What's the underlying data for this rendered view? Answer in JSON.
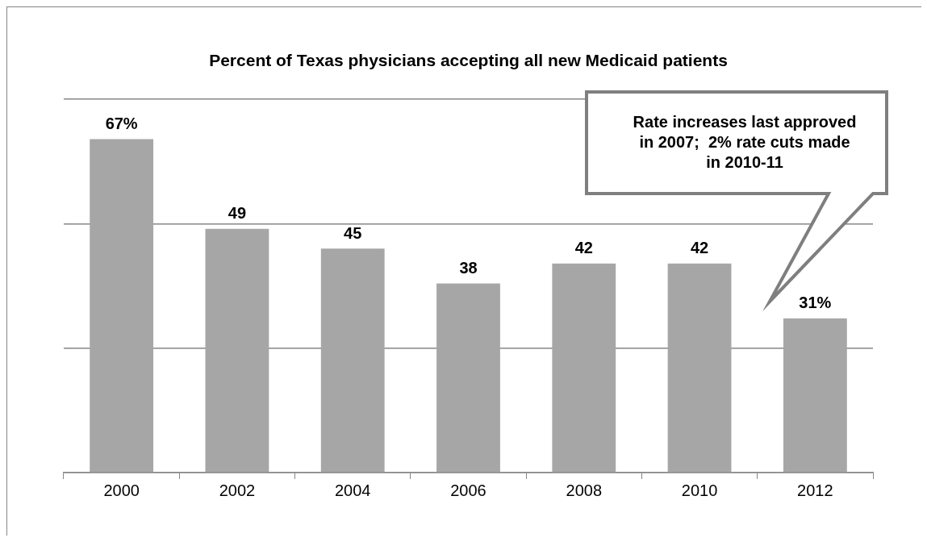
{
  "chart_data": {
    "type": "bar",
    "title": "Percent of Texas physicians accepting all new Medicaid patients",
    "categories": [
      "2000",
      "2002",
      "2004",
      "2006",
      "2008",
      "2010",
      "2012"
    ],
    "values": [
      67,
      49,
      45,
      38,
      42,
      42,
      31
    ],
    "value_labels": [
      "67%",
      "49",
      "45",
      "38",
      "42",
      "42",
      "31%"
    ],
    "color": "#a6a6a6",
    "ylim": [
      0,
      75
    ],
    "yticks": [
      {
        "value": 0,
        "label": null
      },
      {
        "value": 25,
        "label": null
      },
      {
        "value": 50,
        "label": null
      },
      {
        "value": 75,
        "label": null
      }
    ],
    "tick_labels": "x",
    "grid": "y",
    "legend": false,
    "annotations": [
      "Rate increases last approved in 2007;  2% rate cuts made in 2010-11"
    ]
  }
}
